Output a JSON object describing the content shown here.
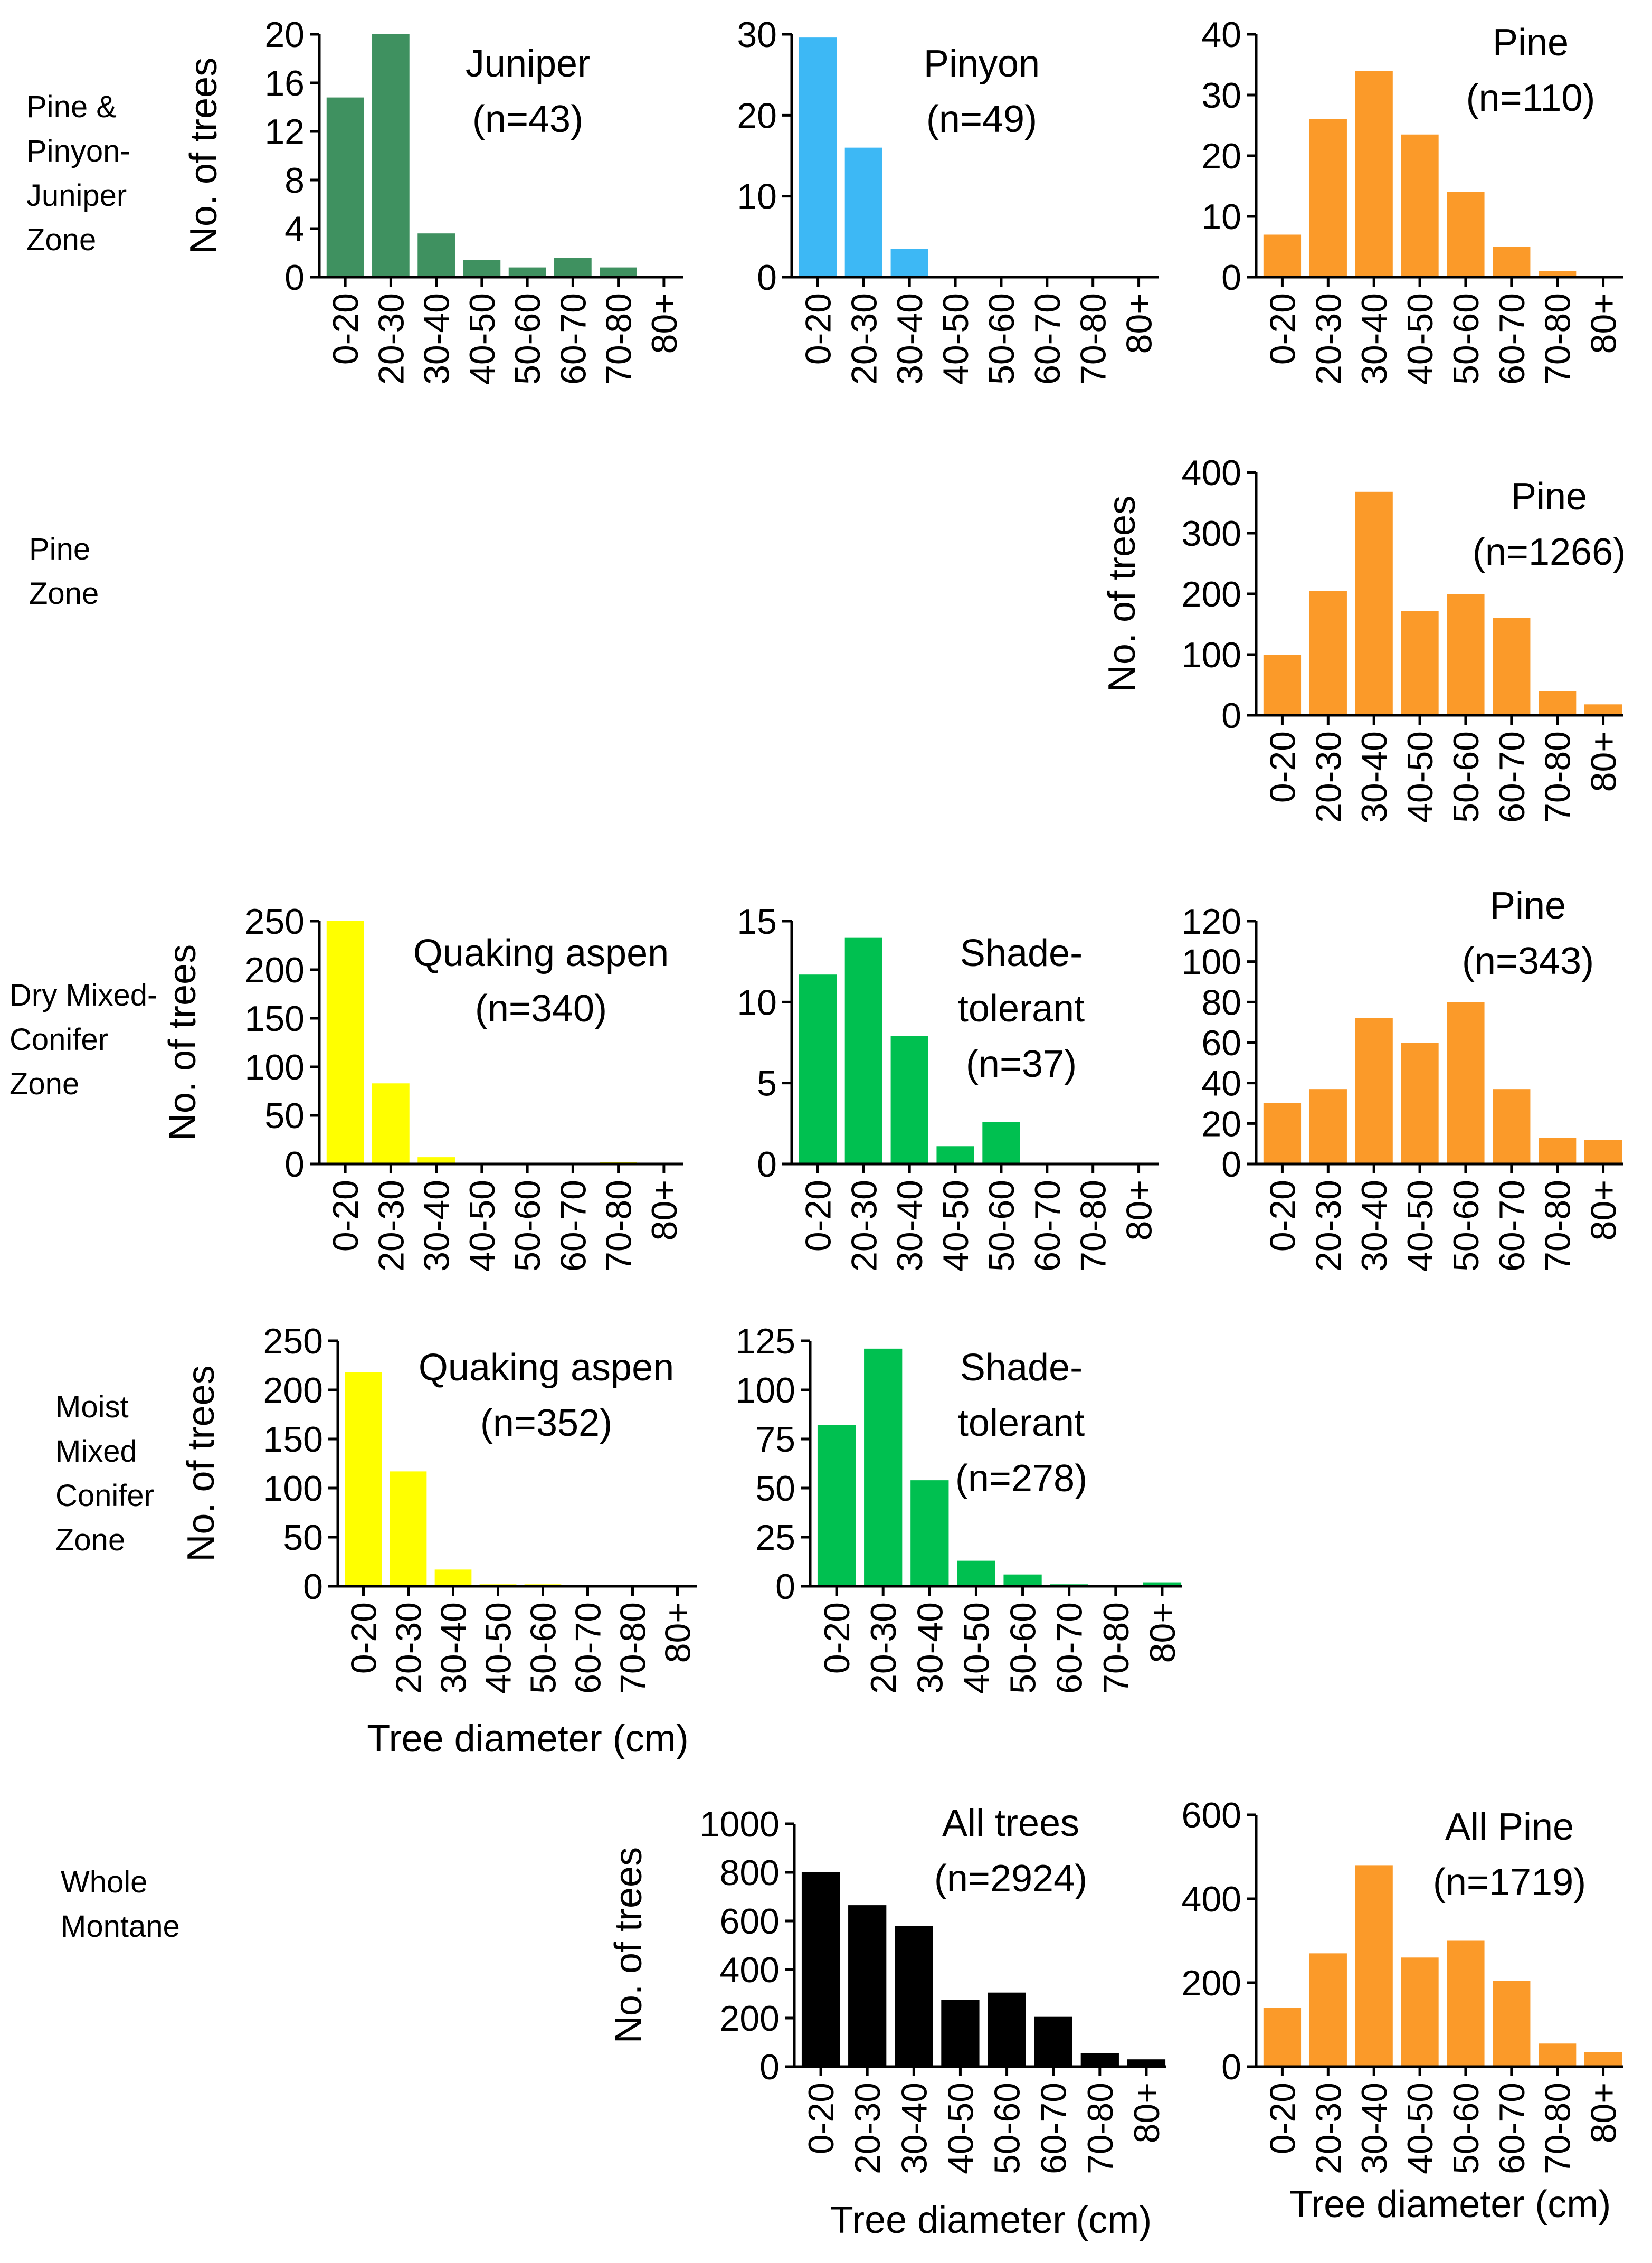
{
  "figure": {
    "categories": [
      "0-20",
      "20-30",
      "30-40",
      "40-50",
      "50-60",
      "60-70",
      "70-80",
      "80+"
    ],
    "ylabel": "No. of trees",
    "xlabel": "Tree diameter (cm)",
    "colors": {
      "juniper": "#3f9160",
      "pinyon": "#3db8f5",
      "pine": "#fb9a29",
      "aspen": "#ffff00",
      "shade": "#00c050",
      "all": "#000000",
      "axis": "#000000"
    }
  },
  "zones": [
    {
      "id": "pj",
      "label": [
        "Pine &",
        "Pinyon-",
        "Juniper",
        "Zone"
      ]
    },
    {
      "id": "pine",
      "label": [
        "Pine",
        "Zone"
      ]
    },
    {
      "id": "dmc",
      "label": [
        "Dry Mixed-",
        "Conifer",
        "Zone"
      ]
    },
    {
      "id": "mmc",
      "label": [
        "Moist",
        "Mixed",
        "Conifer",
        "Zone"
      ]
    },
    {
      "id": "wm",
      "label": [
        "Whole",
        "Montane"
      ]
    }
  ],
  "chart_data": [
    {
      "id": "pj-juniper",
      "type": "bar",
      "title": [
        "Juniper",
        "(n=43)"
      ],
      "color": "juniper",
      "ylim": [
        0,
        20
      ],
      "yticks": [
        0,
        4,
        8,
        12,
        16,
        20
      ],
      "ylabel": true,
      "xlabel": false,
      "categories": [
        "0-20",
        "20-30",
        "30-40",
        "40-50",
        "50-60",
        "60-70",
        "70-80",
        "80+"
      ],
      "values": [
        14.8,
        20,
        3.6,
        1.4,
        0.8,
        1.6,
        0.8,
        0
      ]
    },
    {
      "id": "pj-pinyon",
      "type": "bar",
      "title": [
        "Pinyon",
        "(n=49)"
      ],
      "color": "pinyon",
      "ylim": [
        0,
        30
      ],
      "yticks": [
        0,
        10,
        20,
        30
      ],
      "ylabel": false,
      "xlabel": false,
      "categories": [
        "0-20",
        "20-30",
        "30-40",
        "40-50",
        "50-60",
        "60-70",
        "70-80",
        "80+"
      ],
      "values": [
        29.6,
        16,
        3.5,
        0,
        0,
        0,
        0,
        0
      ]
    },
    {
      "id": "pj-pine",
      "type": "bar",
      "title": [
        "Pine",
        "(n=110)"
      ],
      "color": "pine",
      "ylim": [
        0,
        40
      ],
      "yticks": [
        0,
        10,
        20,
        30,
        40
      ],
      "ylabel": false,
      "xlabel": false,
      "categories": [
        "0-20",
        "20-30",
        "30-40",
        "40-50",
        "50-60",
        "60-70",
        "70-80",
        "80+"
      ],
      "values": [
        7,
        26,
        34,
        23.5,
        14,
        5,
        1,
        0
      ]
    },
    {
      "id": "pz-pine",
      "type": "bar",
      "title": [
        "Pine",
        "(n=1266)"
      ],
      "color": "pine",
      "ylim": [
        0,
        400
      ],
      "yticks": [
        0,
        100,
        200,
        300,
        400
      ],
      "ylabel": true,
      "xlabel": false,
      "categories": [
        "0-20",
        "20-30",
        "30-40",
        "40-50",
        "50-60",
        "60-70",
        "70-80",
        "80+"
      ],
      "values": [
        100,
        205,
        368,
        172,
        200,
        160,
        40,
        18
      ]
    },
    {
      "id": "dmc-aspen",
      "type": "bar",
      "title": [
        "Quaking aspen",
        "(n=340)"
      ],
      "color": "aspen",
      "ylim": [
        0,
        250
      ],
      "yticks": [
        0,
        50,
        100,
        150,
        200,
        250
      ],
      "ylabel": true,
      "xlabel": false,
      "categories": [
        "0-20",
        "20-30",
        "30-40",
        "40-50",
        "50-60",
        "60-70",
        "70-80",
        "80+"
      ],
      "values": [
        250,
        83,
        7,
        0,
        0,
        0,
        2,
        0
      ]
    },
    {
      "id": "dmc-shade",
      "type": "bar",
      "title": [
        "Shade-",
        "tolerant",
        "(n=37)"
      ],
      "color": "shade",
      "ylim": [
        0,
        15
      ],
      "yticks": [
        0,
        5,
        10,
        15
      ],
      "ylabel": false,
      "xlabel": false,
      "categories": [
        "0-20",
        "20-30",
        "30-40",
        "40-50",
        "50-60",
        "60-70",
        "70-80",
        "80+"
      ],
      "values": [
        11.7,
        14,
        7.9,
        1.1,
        2.6,
        0,
        0,
        0
      ]
    },
    {
      "id": "dmc-pine",
      "type": "bar",
      "title": [
        "Pine",
        "(n=343)"
      ],
      "color": "pine",
      "ylim": [
        0,
        120
      ],
      "yticks": [
        0,
        20,
        40,
        60,
        80,
        100,
        120
      ],
      "ylabel": false,
      "xlabel": false,
      "categories": [
        "0-20",
        "20-30",
        "30-40",
        "40-50",
        "50-60",
        "60-70",
        "70-80",
        "80+"
      ],
      "values": [
        30,
        37,
        72,
        60,
        80,
        37,
        13,
        12
      ]
    },
    {
      "id": "mmc-aspen",
      "type": "bar",
      "title": [
        "Quaking aspen",
        "(n=352)"
      ],
      "color": "aspen",
      "ylim": [
        0,
        250
      ],
      "yticks": [
        0,
        50,
        100,
        150,
        200,
        250
      ],
      "ylabel": true,
      "xlabel": true,
      "categories": [
        "0-20",
        "20-30",
        "30-40",
        "40-50",
        "50-60",
        "60-70",
        "70-80",
        "80+"
      ],
      "values": [
        218,
        117,
        17,
        2,
        2,
        1,
        1,
        0
      ]
    },
    {
      "id": "mmc-shade",
      "type": "bar",
      "title": [
        "Shade-",
        "tolerant",
        "(n=278)"
      ],
      "color": "shade",
      "ylim": [
        0,
        125
      ],
      "yticks": [
        0,
        25,
        50,
        75,
        100,
        125
      ],
      "ylabel": false,
      "xlabel": false,
      "categories": [
        "0-20",
        "20-30",
        "30-40",
        "40-50",
        "50-60",
        "60-70",
        "70-80",
        "80+"
      ],
      "values": [
        82,
        121,
        54,
        13,
        6,
        1,
        0,
        2
      ]
    },
    {
      "id": "wm-all",
      "type": "bar",
      "title": [
        "All trees",
        "(n=2924)"
      ],
      "color": "all",
      "ylim": [
        0,
        1000
      ],
      "yticks": [
        0,
        200,
        400,
        600,
        800,
        1000
      ],
      "ylabel": true,
      "xlabel": true,
      "categories": [
        "0-20",
        "20-30",
        "30-40",
        "40-50",
        "50-60",
        "60-70",
        "70-80",
        "80+"
      ],
      "values": [
        800,
        665,
        580,
        275,
        305,
        205,
        55,
        30
      ]
    },
    {
      "id": "wm-pine",
      "type": "bar",
      "title": [
        "All Pine",
        "(n=1719)"
      ],
      "color": "pine",
      "ylim": [
        0,
        600
      ],
      "yticks": [
        0,
        200,
        400,
        600
      ],
      "ylabel": false,
      "xlabel": true,
      "categories": [
        "0-20",
        "20-30",
        "30-40",
        "40-50",
        "50-60",
        "60-70",
        "70-80",
        "80+"
      ],
      "values": [
        140,
        270,
        480,
        260,
        300,
        205,
        55,
        35
      ]
    }
  ]
}
